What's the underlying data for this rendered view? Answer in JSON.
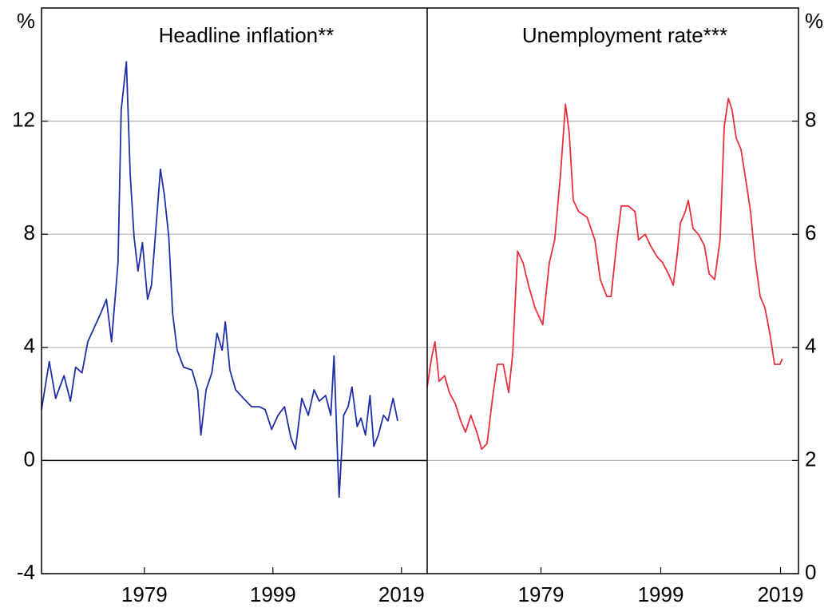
{
  "chart_data": [
    {
      "type": "line",
      "title": "Headline inflation**",
      "y_label": "%",
      "x": [
        1963.0,
        1964.2,
        1965.2,
        1966.5,
        1967.5,
        1968.3,
        1969.3,
        1970.2,
        1971.2,
        1972.2,
        1973.1,
        1973.9,
        1974.9,
        1975.4,
        1976.2,
        1976.8,
        1977.4,
        1978.0,
        1978.7,
        1979.5,
        1980.1,
        1981.0,
        1981.5,
        1982.1,
        1982.8,
        1983.4,
        1984.1,
        1985.1,
        1986.4,
        1987.3,
        1987.8,
        1988.6,
        1989.5,
        1990.3,
        1991.1,
        1991.6,
        1992.3,
        1993.2,
        1994.4,
        1995.7,
        1996.9,
        1997.8,
        1998.8,
        1999.8,
        2000.8,
        2001.8,
        2002.5,
        2003.5,
        2004.5,
        2005.4,
        2006.2,
        2007.2,
        2008.0,
        2008.5,
        2009.0,
        2009.3,
        2010.0,
        2010.7,
        2011.3,
        2012.1,
        2012.7,
        2013.4,
        2014.1,
        2014.7,
        2015.4,
        2016.2,
        2016.9,
        2017.7,
        2018.4
      ],
      "series": [
        {
          "color": "#1f2fa8",
          "values": [
            1.8,
            3.5,
            2.2,
            3.0,
            2.1,
            3.3,
            3.1,
            4.2,
            4.7,
            5.2,
            5.7,
            4.2,
            7.0,
            12.4,
            14.1,
            10.1,
            7.9,
            6.7,
            7.7,
            5.7,
            6.2,
            8.8,
            10.3,
            9.4,
            7.9,
            5.2,
            3.9,
            3.3,
            3.2,
            2.5,
            0.9,
            2.5,
            3.1,
            4.5,
            3.9,
            4.9,
            3.2,
            2.5,
            2.2,
            1.9,
            1.9,
            1.8,
            1.1,
            1.6,
            1.9,
            0.8,
            0.4,
            2.2,
            1.6,
            2.5,
            2.1,
            2.3,
            1.6,
            3.7,
            0.5,
            -1.3,
            1.6,
            1.9,
            2.6,
            1.2,
            1.5,
            0.9,
            2.3,
            0.5,
            0.9,
            1.6,
            1.4,
            2.2,
            1.4
          ]
        }
      ],
      "xlim": [
        1963,
        2023
      ],
      "xticks": [
        1979,
        1999,
        2019
      ],
      "ylim": [
        -4,
        16
      ],
      "yticks": [
        -4,
        0,
        4,
        8,
        12
      ],
      "grid": true
    },
    {
      "type": "line",
      "title": "Unemployment rate***",
      "y_label": "%",
      "x": [
        1960.0,
        1960.7,
        1961.3,
        1962.0,
        1962.9,
        1963.7,
        1964.7,
        1965.6,
        1966.4,
        1967.3,
        1968.3,
        1969.1,
        1970.0,
        1970.9,
        1971.7,
        1972.7,
        1973.6,
        1974.3,
        1975.1,
        1976.0,
        1976.9,
        1978.0,
        1979.3,
        1980.4,
        1981.3,
        1982.3,
        1983.1,
        1983.7,
        1984.4,
        1985.3,
        1986.7,
        1988.0,
        1988.9,
        1990.0,
        1990.7,
        1991.6,
        1992.4,
        1993.6,
        1994.7,
        1995.3,
        1996.4,
        1997.3,
        1998.4,
        1999.3,
        2000.3,
        2001.1,
        2001.7,
        2002.3,
        2003.1,
        2003.6,
        2004.4,
        2005.3,
        2006.3,
        2007.1,
        2008.0,
        2008.9,
        2009.6,
        2010.3,
        2010.9,
        2011.6,
        2012.4,
        2013.3,
        2014.0,
        2014.7,
        2015.6,
        2016.4,
        2017.3,
        2018.0,
        2018.9,
        2019.3
      ],
      "series": [
        {
          "color": "#e8303c",
          "values": [
            3.3,
            3.8,
            4.1,
            3.4,
            3.5,
            3.2,
            3.0,
            2.7,
            2.5,
            2.8,
            2.5,
            2.2,
            2.3,
            3.1,
            3.7,
            3.7,
            3.2,
            3.9,
            5.7,
            5.5,
            5.1,
            4.7,
            4.4,
            5.5,
            5.9,
            7.1,
            8.3,
            7.8,
            6.6,
            6.4,
            6.3,
            5.9,
            5.2,
            4.9,
            4.9,
            5.8,
            6.5,
            6.5,
            6.4,
            5.9,
            6.0,
            5.8,
            5.6,
            5.5,
            5.3,
            5.1,
            5.6,
            6.2,
            6.4,
            6.6,
            6.1,
            6.0,
            5.8,
            5.3,
            5.2,
            5.9,
            7.9,
            8.4,
            8.2,
            7.7,
            7.5,
            6.9,
            6.4,
            5.6,
            4.9,
            4.7,
            4.2,
            3.7,
            3.7,
            3.8
          ]
        }
      ],
      "xlim": [
        1960,
        2022
      ],
      "xticks": [
        1979,
        1999,
        2019
      ],
      "ylim": [
        0,
        10
      ],
      "yticks": [
        0,
        2,
        4,
        6,
        8
      ],
      "grid": true
    }
  ]
}
